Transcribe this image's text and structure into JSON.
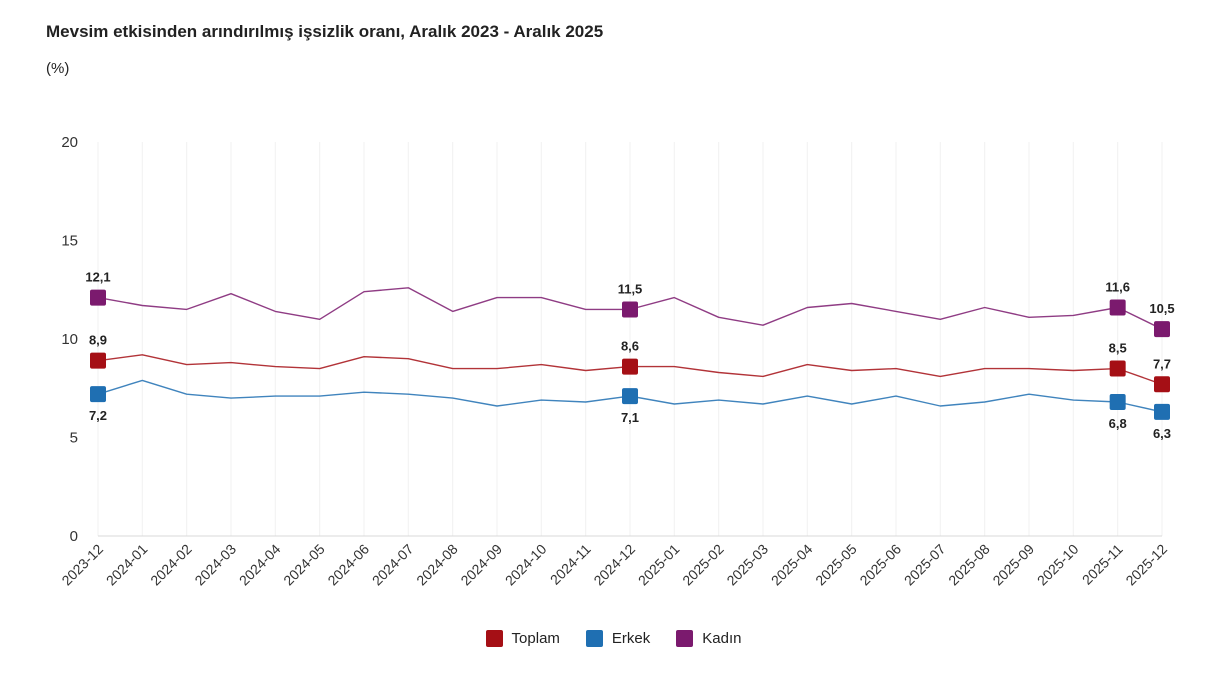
{
  "chart_data": {
    "type": "line",
    "title": "Mevsim etkisinden arındırılmış işsizlik oranı, Aralık 2023 - Aralık 2025",
    "unit_label": "(%)",
    "categories": [
      "2023-12",
      "2024-01",
      "2024-02",
      "2024-03",
      "2024-04",
      "2024-05",
      "2024-06",
      "2024-07",
      "2024-08",
      "2024-09",
      "2024-10",
      "2024-11",
      "2024-12",
      "2025-01",
      "2025-02",
      "2025-03",
      "2025-04",
      "2025-05",
      "2025-06",
      "2025-07",
      "2025-08",
      "2025-09",
      "2025-10",
      "2025-11",
      "2025-12"
    ],
    "y_ticks": [
      "0",
      "5",
      "10",
      "15",
      "20"
    ],
    "ylim": [
      0,
      20
    ],
    "grid": "vertical",
    "legend_position": "bottom-center",
    "series": [
      {
        "name": "Toplam",
        "color": "#a50f15",
        "values": [
          8.9,
          9.2,
          8.7,
          8.8,
          8.6,
          8.5,
          9.1,
          9.0,
          8.5,
          8.5,
          8.7,
          8.4,
          8.6,
          8.6,
          8.3,
          8.1,
          8.7,
          8.4,
          8.5,
          8.1,
          8.5,
          8.5,
          8.4,
          8.5,
          7.7
        ],
        "labels": {
          "0": "8,9",
          "12": "8,6",
          "23": "8,5",
          "24": "7,7"
        }
      },
      {
        "name": "Erkek",
        "color": "#1f6fb2",
        "values": [
          7.2,
          7.9,
          7.2,
          7.0,
          7.1,
          7.1,
          7.3,
          7.2,
          7.0,
          6.6,
          6.9,
          6.8,
          7.1,
          6.7,
          6.9,
          6.7,
          7.1,
          6.7,
          7.1,
          6.6,
          6.8,
          7.2,
          6.9,
          6.8,
          6.3
        ],
        "labels": {
          "0": "7,2",
          "12": "7,1",
          "23": "6,8",
          "24": "6,3"
        }
      },
      {
        "name": "Kadın",
        "color": "#7b1a6e",
        "values": [
          12.1,
          11.7,
          11.5,
          12.3,
          11.4,
          11.0,
          12.4,
          12.6,
          11.4,
          12.1,
          12.1,
          11.5,
          11.5,
          12.1,
          11.1,
          10.7,
          11.6,
          11.8,
          11.4,
          11.0,
          11.6,
          11.1,
          11.2,
          11.6,
          10.5
        ],
        "labels": {
          "0": "12,1",
          "12": "11,5",
          "23": "11,6",
          "24": "10,5"
        }
      }
    ]
  }
}
